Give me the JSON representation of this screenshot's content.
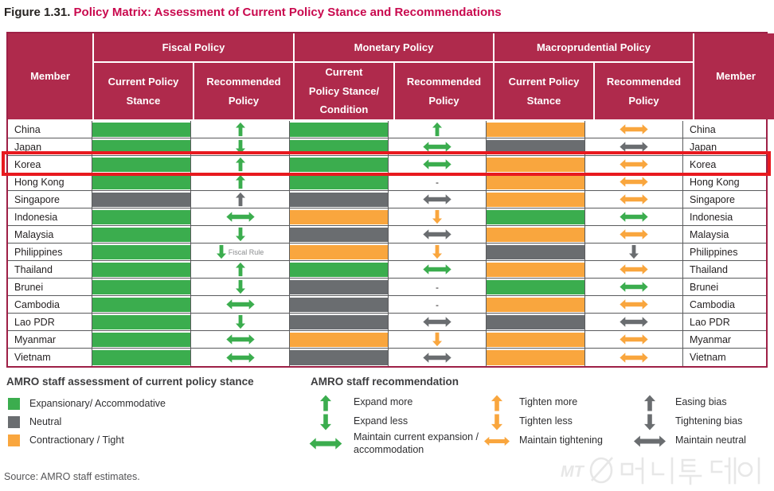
{
  "title": {
    "prefix": "Figure 1.31.",
    "main": " Policy Matrix: Assessment of Current Policy Stance and Recommendations"
  },
  "colors": {
    "green": "#3BAD4E",
    "orange": "#F9A63E",
    "gray": "#6A6D70",
    "header_bg": "#AF2A4C",
    "title_red": "#C9094E",
    "highlight_red": "#E8191F",
    "border_crimson": "#9E2046",
    "grid_line": "#5A5B5D"
  },
  "table": {
    "member_header": "Member",
    "groups": [
      {
        "label": "Fiscal Policy",
        "subs": [
          [
            "Current Policy",
            "Stance"
          ],
          [
            "Recommended",
            "Policy"
          ]
        ]
      },
      {
        "label": "Monetary Policy",
        "subs": [
          [
            "Current",
            "Policy Stance/",
            "Condition"
          ],
          [
            "Recommended",
            "Policy"
          ]
        ]
      },
      {
        "label": "Macroprudential Policy",
        "subs": [
          [
            "Current Policy",
            "Stance"
          ],
          [
            "Recommended",
            "Policy"
          ]
        ]
      }
    ],
    "rows": [
      {
        "member": "China",
        "highlighted": false,
        "cells": [
          "fill:green",
          "up:green",
          "fill:green",
          "up:green",
          "fill:orange",
          "lr:orange"
        ]
      },
      {
        "member": "Japan",
        "highlighted": false,
        "cells": [
          "fill:green",
          "down:green",
          "fill:green",
          "lr:green",
          "fill:gray",
          "lr:gray"
        ]
      },
      {
        "member": "Korea",
        "highlighted": true,
        "cells": [
          "fill:green",
          "up:green",
          "fill:green",
          "lr:green",
          "fill:orange",
          "lr:orange"
        ]
      },
      {
        "member": "Hong Kong",
        "highlighted": false,
        "cells": [
          "fill:green",
          "up:green",
          "fill:green",
          "dash",
          "fill:orange",
          "lr:orange"
        ]
      },
      {
        "member": "Singapore",
        "highlighted": false,
        "cells": [
          "fill:gray",
          "up:gray",
          "fill:gray",
          "lr:gray",
          "fill:orange",
          "lr:orange"
        ]
      },
      {
        "member": "Indonesia",
        "highlighted": false,
        "cells": [
          "fill:green",
          "lr:green",
          "fill:orange",
          "down:orange",
          "fill:green",
          "lr:green"
        ]
      },
      {
        "member": "Malaysia",
        "highlighted": false,
        "cells": [
          "fill:green",
          "down:green",
          "fill:gray",
          "lr:gray",
          "fill:orange",
          "lr:orange"
        ]
      },
      {
        "member": "Philippines",
        "highlighted": false,
        "cells": [
          "fill:green",
          "down:green:Fiscal Rule",
          "fill:orange",
          "down:orange",
          "fill:gray",
          "down:gray"
        ]
      },
      {
        "member": "Thailand",
        "highlighted": false,
        "cells": [
          "fill:green",
          "up:green",
          "fill:green",
          "lr:green",
          "fill:orange",
          "lr:orange"
        ]
      },
      {
        "member": "Brunei",
        "highlighted": false,
        "cells": [
          "fill:green",
          "down:green",
          "fill:gray",
          "dash",
          "fill:green",
          "lr:green"
        ]
      },
      {
        "member": "Cambodia",
        "highlighted": false,
        "cells": [
          "fill:green",
          "lr:green",
          "fill:gray",
          "dash",
          "fill:orange",
          "lr:orange"
        ]
      },
      {
        "member": "Lao PDR",
        "highlighted": false,
        "cells": [
          "fill:green",
          "down:green",
          "fill:gray",
          "lr:gray",
          "fill:gray",
          "lr:gray"
        ]
      },
      {
        "member": "Myanmar",
        "highlighted": false,
        "cells": [
          "fill:green",
          "lr:green",
          "fill:orange",
          "down:orange",
          "fill:orange",
          "lr:orange"
        ]
      },
      {
        "member": "Vietnam",
        "highlighted": false,
        "cells": [
          "fill:green",
          "lr:green",
          "fill:gray",
          "lr:gray",
          "fill:orange",
          "lr:orange"
        ]
      }
    ],
    "dash_value": "-"
  },
  "legend": {
    "assessment": {
      "heading": "AMRO staff assessment of current policy stance",
      "items": [
        {
          "color": "green",
          "label": "Expansionary/ Accommodative"
        },
        {
          "color": "gray",
          "label": "Neutral"
        },
        {
          "color": "orange",
          "label": "Contractionary / Tight"
        }
      ]
    },
    "recommendation": {
      "heading": "AMRO staff recommendation",
      "columns": [
        {
          "items": [
            {
              "icon": "up",
              "color": "green",
              "label": "Expand more"
            },
            {
              "icon": "down",
              "color": "green",
              "label": "Expand less"
            },
            {
              "icon": "lr",
              "color": "green",
              "label": "Maintain current expansion /\naccommodation"
            }
          ]
        },
        {
          "items": [
            {
              "icon": "up",
              "color": "orange",
              "label": "Tighten more"
            },
            {
              "icon": "down",
              "color": "orange",
              "label": "Tighten less"
            },
            {
              "icon": "lr",
              "color": "orange",
              "label": "Maintain tightening"
            }
          ]
        },
        {
          "items": [
            {
              "icon": "up",
              "color": "gray",
              "label": "Easing bias"
            },
            {
              "icon": "down",
              "color": "gray",
              "label": "Tightening bias"
            },
            {
              "icon": "lr",
              "color": "gray",
              "label": "Maintain neutral"
            }
          ]
        }
      ]
    }
  },
  "source": "Source: AMRO staff estimates.",
  "watermark": {
    "mt": "MT",
    "korean": "머니투데이"
  },
  "chart_data": {
    "type": "table",
    "title": "Figure 1.31. Policy Matrix: Assessment of Current Policy Stance and Recommendations",
    "columns": [
      "Member",
      "Fiscal: Current Policy Stance",
      "Fiscal: Recommended Policy",
      "Monetary: Current Policy Stance/Condition",
      "Monetary: Recommended Policy",
      "Macroprudential: Current Policy Stance",
      "Macroprudential: Recommended Policy"
    ],
    "rows": [
      [
        "China",
        "Expansionary",
        "Expand more",
        "Accommodative",
        "Expand more",
        "Tight",
        "Maintain tightening"
      ],
      [
        "Japan",
        "Expansionary",
        "Expand less",
        "Accommodative",
        "Maintain current expansion/accommodation",
        "Neutral",
        "Maintain neutral"
      ],
      [
        "Korea",
        "Expansionary",
        "Expand more",
        "Accommodative",
        "Maintain current expansion/accommodation",
        "Tight",
        "Maintain tightening"
      ],
      [
        "Hong Kong",
        "Expansionary",
        "Expand more",
        "Accommodative",
        "-",
        "Tight",
        "Maintain tightening"
      ],
      [
        "Singapore",
        "Neutral",
        "Easing bias",
        "Neutral",
        "Maintain neutral",
        "Tight",
        "Maintain tightening"
      ],
      [
        "Indonesia",
        "Expansionary",
        "Maintain current expansion/accommodation",
        "Tight",
        "Tighten less",
        "Expansionary",
        "Maintain current expansion/accommodation"
      ],
      [
        "Malaysia",
        "Expansionary",
        "Expand less",
        "Neutral",
        "Maintain neutral",
        "Tight",
        "Maintain tightening"
      ],
      [
        "Philippines",
        "Expansionary",
        "Expand less (Fiscal Rule)",
        "Tight",
        "Tighten less",
        "Neutral",
        "Tightening bias"
      ],
      [
        "Thailand",
        "Expansionary",
        "Expand more",
        "Accommodative",
        "Maintain current expansion/accommodation",
        "Tight",
        "Maintain tightening"
      ],
      [
        "Brunei",
        "Expansionary",
        "Expand less",
        "Neutral",
        "-",
        "Expansionary",
        "Maintain current expansion/accommodation"
      ],
      [
        "Cambodia",
        "Expansionary",
        "Maintain current expansion/accommodation",
        "Neutral",
        "-",
        "Tight",
        "Maintain tightening"
      ],
      [
        "Lao PDR",
        "Expansionary",
        "Expand less",
        "Neutral",
        "Maintain neutral",
        "Neutral",
        "Maintain neutral"
      ],
      [
        "Myanmar",
        "Expansionary",
        "Maintain current expansion/accommodation",
        "Tight",
        "Tighten less",
        "Tight",
        "Maintain tightening"
      ],
      [
        "Vietnam",
        "Expansionary",
        "Maintain current expansion/accommodation",
        "Neutral",
        "Maintain neutral",
        "Tight",
        "Maintain tightening"
      ]
    ],
    "highlighted_row": "Korea",
    "legend_position": "below"
  }
}
